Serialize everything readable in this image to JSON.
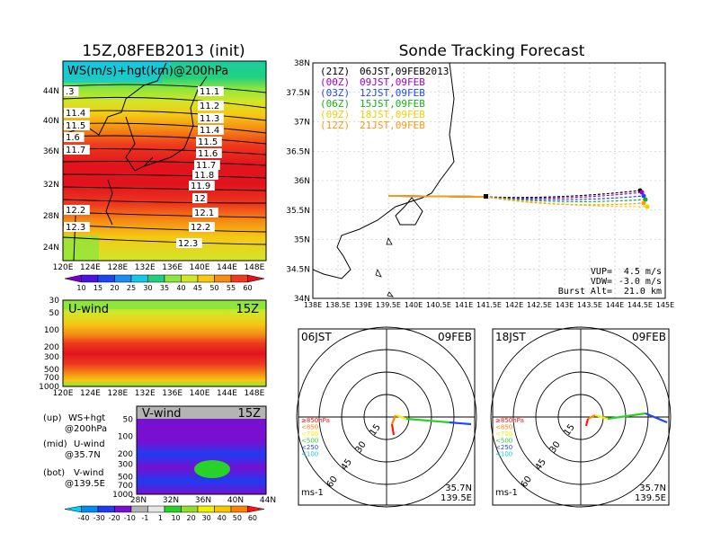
{
  "header": {
    "left_title": "15Z,08FEB2013 (init)",
    "right_title": "Sonde Tracking Forecast"
  },
  "colors": {
    "scale_top": [
      "#7a00d0",
      "#4a14e0",
      "#1e46f0",
      "#1e8cf0",
      "#16c8e6",
      "#20d080",
      "#8ee63c",
      "#d2e628",
      "#f5c814",
      "#f58c14",
      "#ee3a1e",
      "#e1141e"
    ],
    "scale_bottom": [
      "#00d2ff",
      "#008cf0",
      "#1e3cf0",
      "#7810d2",
      "#b4b4b4",
      "#e6e6e6",
      "#28d228",
      "#96dc2a",
      "#f0f000",
      "#fac800",
      "#ff8200",
      "#ff1414"
    ],
    "traj": [
      "#000000",
      "#a000c8",
      "#1e46ff",
      "#14b414",
      "#f0d000",
      "#ff9614"
    ]
  },
  "upper_map": {
    "label": "WS(m/s)+hgt(km)@200hPa",
    "lat_ticks": [
      "44N",
      "40N",
      "36N",
      "32N",
      "28N",
      "24N"
    ],
    "lon_ticks": [
      "120E",
      "124E",
      "128E",
      "132E",
      "136E",
      "140E",
      "144E",
      "148E"
    ],
    "contour_labels_left": [
      ".3",
      "11.4",
      "11.5",
      "1.6",
      "11.7",
      "12.2",
      "12.3"
    ],
    "contour_labels_right": [
      "11.1",
      "11.2",
      "11.3",
      "11.4",
      "11.5",
      "11.6",
      "11.7",
      "11.8",
      "11.9",
      "12",
      "12.1",
      "12.2",
      "12.3"
    ],
    "colorbar_ticks": [
      "10",
      "15",
      "20",
      "25",
      "30",
      "35",
      "40",
      "45",
      "50",
      "55",
      "60"
    ]
  },
  "mid_panel": {
    "label": "U-wind",
    "time": "15Z",
    "p_ticks": [
      "30",
      "50",
      "100",
      "200",
      "300",
      "500",
      "700",
      "1000"
    ],
    "lon_ticks": [
      "120E",
      "124E",
      "128E",
      "132E",
      "136E",
      "140E",
      "144E",
      "148E"
    ]
  },
  "bottom_panel": {
    "label": "V-wind",
    "time": "15Z",
    "p_ticks": [
      "50",
      "100",
      "200",
      "300",
      "500",
      "700",
      "1000"
    ],
    "lat_ticks": [
      "28N",
      "32N",
      "36N",
      "40N",
      "44N"
    ],
    "colorbar_ticks": [
      "-40",
      "-30",
      "-20",
      "-10",
      "-1",
      "1",
      "10",
      "20",
      "30",
      "40",
      "50",
      "60"
    ]
  },
  "legend_notes": [
    {
      "tag": "(up)",
      "text": "WS+hgt",
      "sub": "@200hPa"
    },
    {
      "tag": "(mid)",
      "text": "U-wind",
      "sub": "@35.7N"
    },
    {
      "tag": "(bot)",
      "text": "V-wind",
      "sub": "@139.5E"
    }
  ],
  "tracking": {
    "launches": [
      {
        "code": "(21Z)",
        "time": "06JST,09FEB2013"
      },
      {
        "code": "(00Z)",
        "time": "09JST,09FEB"
      },
      {
        "code": "(03Z)",
        "time": "12JST,09FEB"
      },
      {
        "code": "(06Z)",
        "time": "15JST,09FEB"
      },
      {
        "code": "(09Z)",
        "time": "18JST,09FEB"
      },
      {
        "code": "(12Z)",
        "time": "21JST,09FEB"
      }
    ],
    "lat_ticks": [
      "38N",
      "37.5N",
      "37N",
      "36.5N",
      "36N",
      "35.5N",
      "35N",
      "34.5N",
      "34N"
    ],
    "lon_ticks": [
      "138E",
      "138.5E",
      "139E",
      "139.5E",
      "140E",
      "140.5E",
      "141E",
      "141.5E",
      "142E",
      "142.5E",
      "143E",
      "143.5E",
      "144E",
      "144.5E",
      "145E"
    ],
    "params": {
      "vup_label": "VUP=",
      "vup": "4.5 m/s",
      "vdw_label": "VDW=",
      "vdw": "-3.0 m/s",
      "burst_label": "Burst Alt=",
      "burst": "21.0 km"
    }
  },
  "hodographs": [
    {
      "time": "06JST",
      "date": "09FEB",
      "lat": "35.7N",
      "lon": "139.5E",
      "unit": "ms-1",
      "ring_labels": [
        "15",
        "30",
        "45",
        "60"
      ],
      "levels": [
        "≥850hPa",
        "<850",
        "<700",
        "<500",
        "<250",
        "<100"
      ]
    },
    {
      "time": "18JST",
      "date": "09FEB",
      "lat": "35.7N",
      "lon": "139.5E",
      "unit": "ms-1",
      "ring_labels": [
        "15",
        "30",
        "45",
        "60"
      ],
      "levels": [
        "≥850hPa",
        "<850",
        "<700",
        "<500",
        "<250",
        "<100"
      ]
    }
  ]
}
